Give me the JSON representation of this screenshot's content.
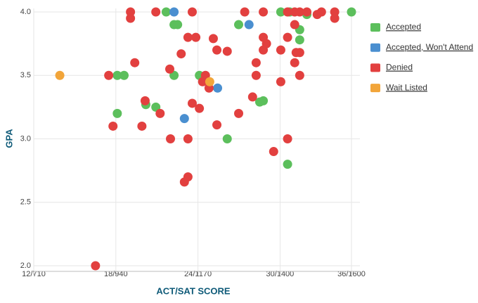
{
  "chart_data": {
    "type": "scatter",
    "xlabel": "ACT/SAT SCORE",
    "ylabel": "GPA",
    "xlim": [
      710,
      1600
    ],
    "ylim": [
      2,
      4
    ],
    "xticks": [
      {
        "value": 710,
        "label": "12/710"
      },
      {
        "value": 940,
        "label": "18/940"
      },
      {
        "value": 1170,
        "label": "24/1170"
      },
      {
        "value": 1400,
        "label": "30/1400"
      },
      {
        "value": 1600,
        "label": "36/1600"
      }
    ],
    "yticks": [
      {
        "value": 2,
        "label": "2.0"
      },
      {
        "value": 2.5,
        "label": "2.5"
      },
      {
        "value": 3,
        "label": "3.0"
      },
      {
        "value": 3.5,
        "label": "3.5"
      },
      {
        "value": 4,
        "label": "4.0"
      }
    ],
    "grid": true,
    "legend": "right",
    "series": [
      {
        "name": "Accepted",
        "color": "#5cbf5c",
        "x": [
          1081,
          1103,
          1113,
          1103,
          944,
          963,
          944,
          1024,
          1052,
          1174,
          1252,
          1284,
          1343,
          1353,
          1402,
          1427,
          1455,
          1455,
          1475,
          1421,
          1600
        ],
        "values": [
          4.0,
          3.9,
          3.9,
          3.5,
          3.5,
          3.5,
          3.2,
          3.27,
          3.25,
          3.5,
          3.0,
          3.9,
          3.29,
          3.3,
          4.0,
          4.0,
          3.86,
          3.78,
          3.98,
          2.8,
          4.0
        ]
      },
      {
        "name": "Accepted, Won't Attend",
        "color": "#4a8fd0",
        "x": [
          1103,
          1313,
          1225,
          1132
        ],
        "values": [
          4.0,
          3.9,
          3.4,
          3.16
        ]
      },
      {
        "name": "Denied",
        "color": "#e2403f",
        "x": [
          883,
          920,
          932,
          981,
          981,
          993,
          1013,
          1022,
          1052,
          1064,
          1091,
          1093,
          1123,
          1132,
          1142,
          1142,
          1142,
          1154,
          1154,
          1164,
          1174,
          1183,
          1191,
          1201,
          1213,
          1223,
          1223,
          1252,
          1284,
          1301,
          1323,
          1333,
          1333,
          1353,
          1353,
          1353,
          1362,
          1382,
          1402,
          1402,
          1421,
          1421,
          1421,
          1441,
          1441,
          1441,
          1445,
          1455,
          1455,
          1455,
          1475,
          1504,
          1516,
          1553,
          1553
        ],
        "values": [
          2.0,
          3.5,
          3.1,
          4.0,
          3.95,
          3.6,
          3.1,
          3.3,
          4.0,
          3.2,
          3.55,
          3.0,
          3.67,
          2.66,
          2.7,
          3.0,
          3.8,
          4.0,
          3.28,
          3.8,
          3.24,
          3.45,
          3.5,
          3.4,
          3.79,
          3.7,
          3.11,
          3.69,
          3.2,
          4.0,
          3.33,
          3.6,
          3.5,
          4.0,
          3.8,
          3.7,
          3.75,
          2.9,
          3.45,
          3.7,
          4.0,
          3.8,
          3.0,
          4.0,
          3.9,
          3.6,
          3.68,
          3.68,
          3.5,
          4.0,
          4.0,
          3.98,
          4.0,
          4.0,
          3.95
        ]
      },
      {
        "name": "Wait Listed",
        "color": "#f2a53a",
        "x": [
          783,
          1203
        ],
        "values": [
          3.5,
          3.45
        ]
      }
    ]
  }
}
